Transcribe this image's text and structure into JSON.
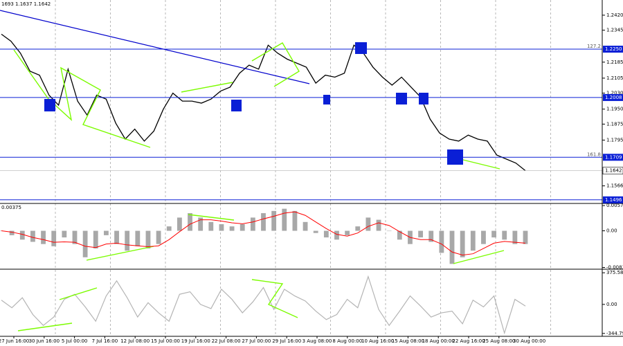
{
  "chart_data": [
    {
      "type": "line",
      "header": "1693 1.1637 1.1642",
      "color": "#000000",
      "x_labels": [
        "27 Jun 16:00",
        "30 Jun 16:00",
        "5 Jul 00:00",
        "7 Jul 16:00",
        "12 Jul 08:00",
        "15 Jul 00:00",
        "19 Jul 16:00",
        "22 Jul 08:00",
        "27 Jul 00:00",
        "29 Jul 16:00",
        "3 Aug 08:00",
        "8 Aug 00:00",
        "10 Aug 16:00",
        "15 Aug 08:00",
        "18 Aug 00:00",
        "22 Aug 16:00",
        "25 Aug 08:00",
        "30 Aug 00:00"
      ],
      "values": [
        1.2325,
        1.229,
        1.223,
        1.214,
        1.212,
        1.202,
        1.197,
        1.215,
        1.199,
        1.192,
        1.202,
        1.2,
        1.188,
        1.18,
        1.185,
        1.179,
        1.184,
        1.195,
        1.203,
        1.199,
        1.199,
        1.198,
        1.2,
        1.204,
        1.206,
        1.213,
        1.217,
        1.215,
        1.227,
        1.223,
        1.22,
        1.218,
        1.216,
        1.208,
        1.212,
        1.211,
        1.213,
        1.227,
        1.223,
        1.216,
        1.211,
        1.207,
        1.211,
        1.206,
        1.201,
        1.19,
        1.183,
        1.18,
        1.179,
        1.182,
        1.18,
        1.179,
        1.172,
        1.17,
        1.168,
        1.1642
      ],
      "ylim": [
        1.1478,
        1.2496
      ],
      "yticks": [
        {
          "value": 1.242,
          "label": "1.2420"
        },
        {
          "value": 1.2345,
          "label": "1.2345"
        },
        {
          "value": 1.2185,
          "label": "1.2185"
        },
        {
          "value": 1.2105,
          "label": "1.2105"
        },
        {
          "value": 1.203,
          "label": "1.2030"
        },
        {
          "value": 1.195,
          "label": "1.1950"
        },
        {
          "value": 1.1875,
          "label": "1.1875"
        },
        {
          "value": 1.1795,
          "label": "1.1795"
        },
        {
          "value": 1.1566,
          "label": "1.1566"
        }
      ],
      "levels": [
        {
          "value": 1.225,
          "label": "1.2250",
          "note": "127.2"
        },
        {
          "value": 1.2008,
          "label": "1.2008"
        },
        {
          "value": 1.1709,
          "label": "1.1709",
          "note": "161.8"
        },
        {
          "value": 1.1496,
          "label": "1.1496"
        }
      ],
      "current": {
        "value": 1.1642,
        "label": "1.1642"
      }
    },
    {
      "type": "bar",
      "header": "0.00375",
      "color": "#a8a8a8",
      "signal_color": "#ff0000",
      "values": [
        0.0,
        -0.001,
        -0.002,
        -0.0025,
        -0.003,
        -0.0035,
        -0.0015,
        -0.003,
        -0.006,
        -0.004,
        -0.001,
        -0.003,
        -0.0045,
        -0.0035,
        -0.004,
        -0.003,
        0.001,
        0.003,
        0.004,
        0.003,
        0.002,
        0.0015,
        0.001,
        0.0015,
        0.003,
        0.004,
        0.0045,
        0.005,
        0.0045,
        0.002,
        -0.0005,
        -0.0015,
        -0.002,
        -0.001,
        0.001,
        0.003,
        0.0025,
        0.0,
        -0.002,
        -0.003,
        -0.0015,
        -0.0025,
        -0.005,
        -0.0075,
        -0.006,
        -0.0045,
        -0.003,
        -0.0015,
        -0.002,
        -0.003,
        -0.003
      ],
      "signal_values": [
        0.0,
        -0.0003,
        -0.0008,
        -0.0015,
        -0.002,
        -0.0026,
        -0.0025,
        -0.0026,
        -0.0035,
        -0.0038,
        -0.003,
        -0.0028,
        -0.0032,
        -0.0034,
        -0.0036,
        -0.0034,
        -0.002,
        -0.0002,
        0.0015,
        0.0025,
        0.0025,
        0.0022,
        0.0018,
        0.0016,
        0.002,
        0.0027,
        0.0033,
        0.004,
        0.0043,
        0.0035,
        0.002,
        0.0005,
        -0.0008,
        -0.0012,
        -0.0005,
        0.001,
        0.0018,
        0.0012,
        -0.0002,
        -0.0015,
        -0.002,
        -0.002,
        -0.003,
        -0.0048,
        -0.0055,
        -0.0052,
        -0.004,
        -0.0028,
        -0.0024,
        -0.0026,
        -0.0028
      ],
      "ylim": [
        -0.0087,
        0.0062
      ],
      "yticks": [
        0.00572,
        {
          "value": 0,
          "label": "0.00"
        },
        -0.00831
      ]
    },
    {
      "type": "line",
      "color": "#b4b4b4",
      "values": [
        50,
        -40,
        80,
        -120,
        -250,
        -150,
        60,
        120,
        -30,
        -200,
        100,
        280,
        80,
        -150,
        20,
        -100,
        -200,
        120,
        150,
        0,
        -50,
        180,
        60,
        -100,
        30,
        200,
        -60,
        180,
        100,
        40,
        -80,
        -180,
        -120,
        60,
        -40,
        330,
        -60,
        -250,
        -80,
        100,
        -20,
        -150,
        -100,
        -80,
        -230,
        50,
        -30,
        100,
        -340,
        60,
        -20
      ],
      "ylim": [
        -379,
        418
      ],
      "yticks": [
        375.5808,
        {
          "value": 0,
          "label": "0.00"
        },
        -344.798
      ]
    }
  ]
}
